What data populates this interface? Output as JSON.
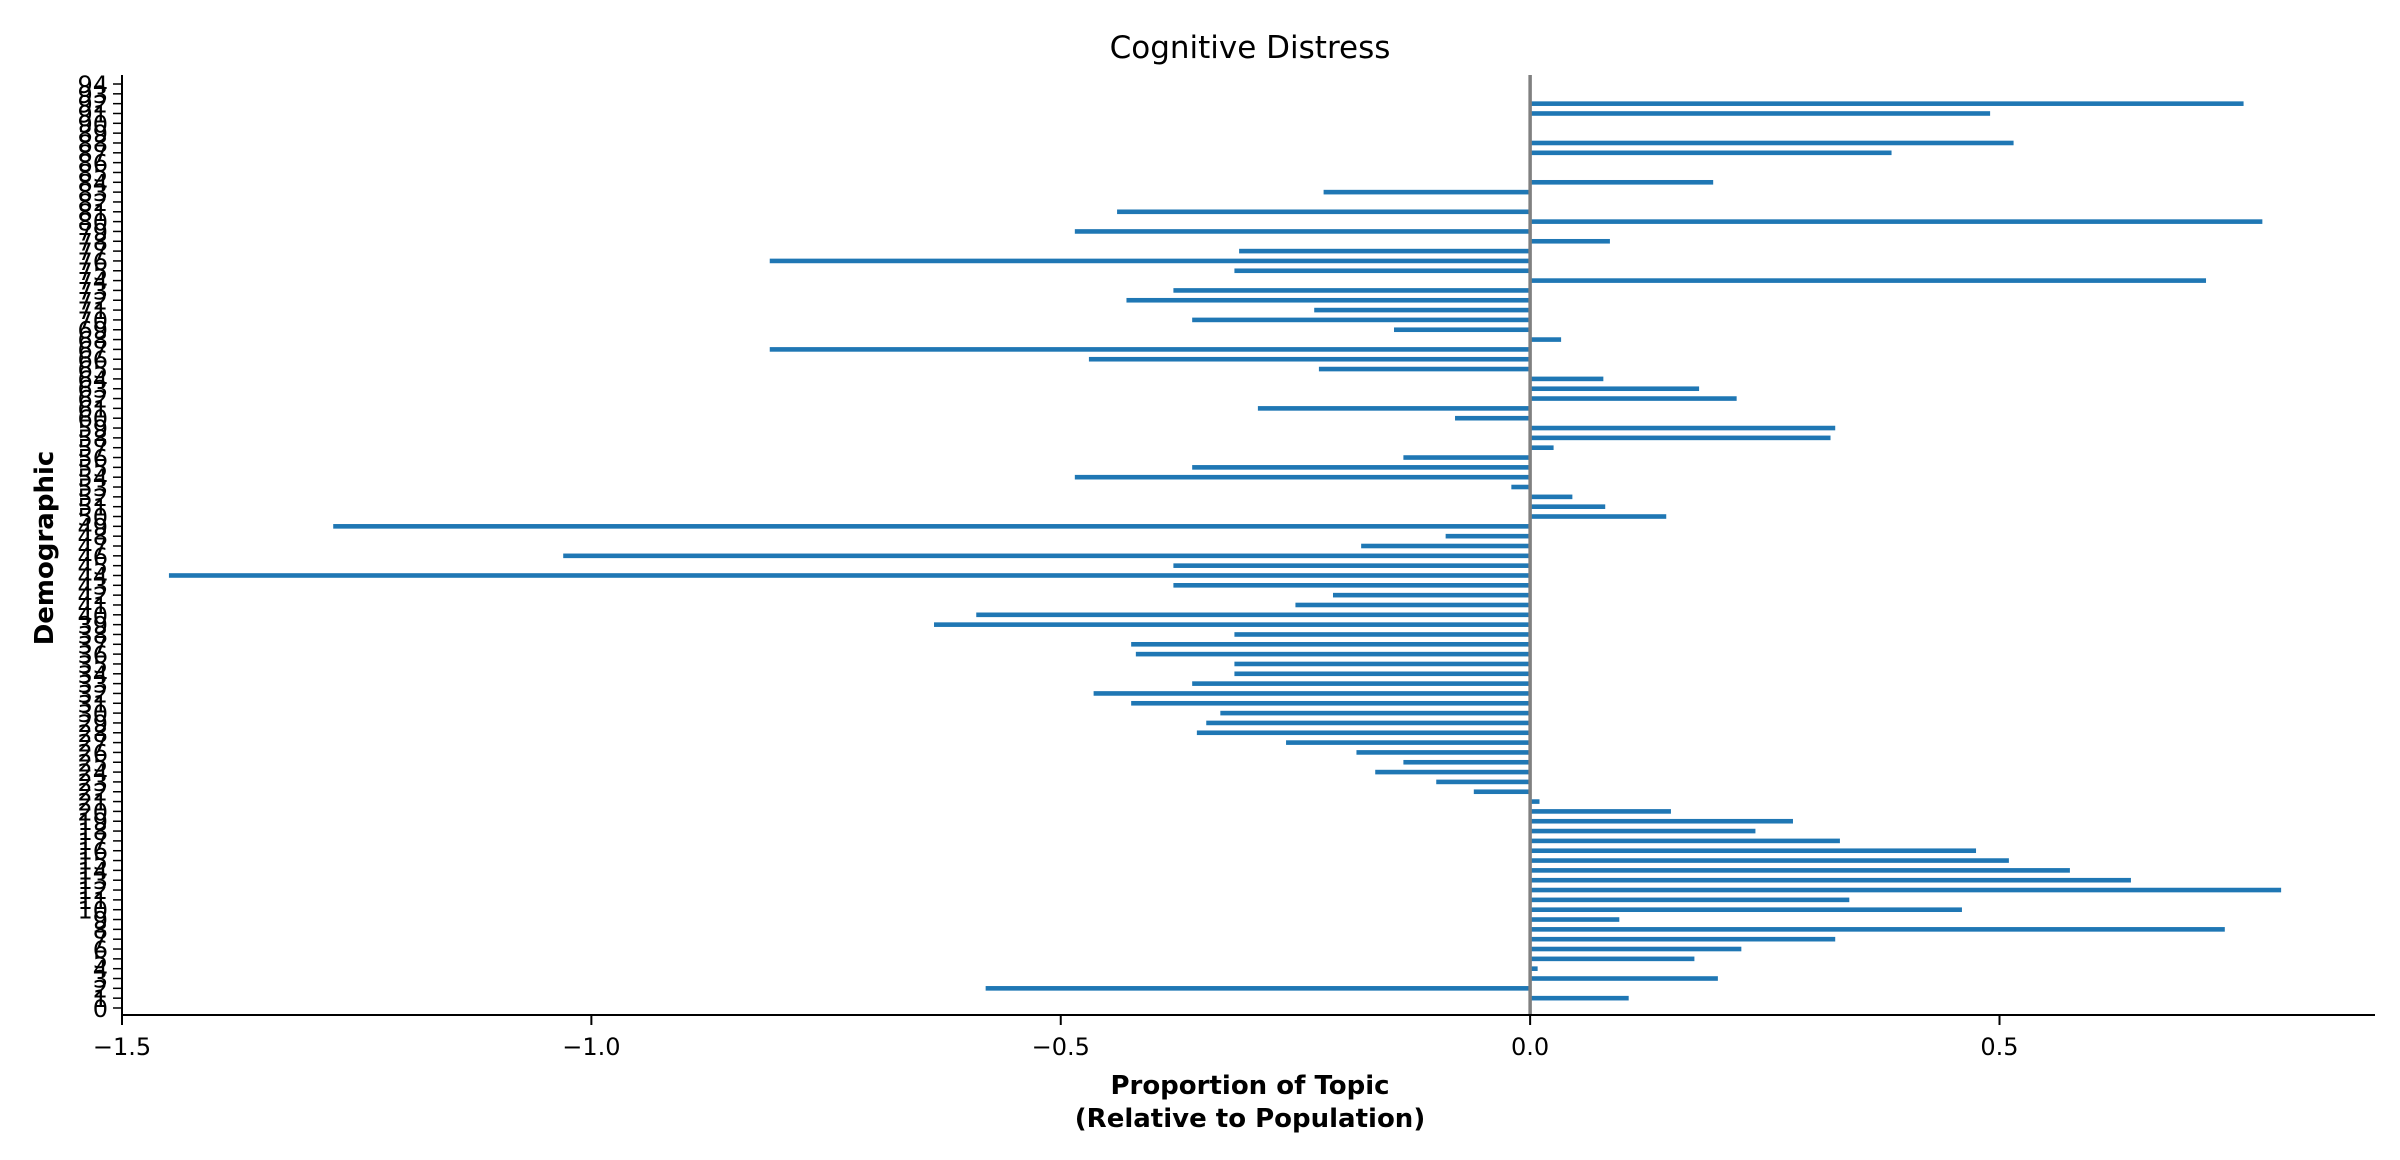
{
  "chart_data": {
    "type": "bar",
    "orientation": "horizontal",
    "title": "Cognitive Distress",
    "xlabel": [
      "Proportion of Topic",
      "(Relative to Population)"
    ],
    "ylabel": "Demographic",
    "xlim": [
      -1.5,
      0.9
    ],
    "ylim": [
      0,
      94
    ],
    "xticks": [
      -1.5,
      -1.0,
      -0.5,
      0.0,
      0.5
    ],
    "xtick_labels": [
      "−1.5",
      "−1.0",
      "−0.5",
      "0.0",
      "0.5"
    ],
    "grid": false,
    "bar_color": "#1f77b4",
    "zero_line_color": "#808080",
    "categories": [
      0,
      1,
      2,
      3,
      4,
      5,
      6,
      7,
      8,
      9,
      10,
      11,
      12,
      13,
      14,
      15,
      16,
      17,
      18,
      19,
      20,
      21,
      22,
      23,
      24,
      25,
      26,
      27,
      28,
      29,
      30,
      31,
      32,
      33,
      34,
      35,
      36,
      37,
      38,
      39,
      40,
      41,
      42,
      43,
      44,
      45,
      46,
      47,
      48,
      49,
      50,
      51,
      52,
      53,
      54,
      55,
      56,
      57,
      58,
      59,
      60,
      61,
      62,
      63,
      64,
      65,
      66,
      67,
      68,
      69,
      70,
      71,
      72,
      73,
      74,
      75,
      76,
      77,
      78,
      79,
      80,
      81,
      82,
      83,
      84,
      85,
      86,
      87,
      88,
      89,
      90,
      91,
      92,
      93,
      94
    ],
    "values": [
      0,
      0.105,
      -0.58,
      0.2,
      0.008,
      0.175,
      0.225,
      0.325,
      0.74,
      0.095,
      0.46,
      0.34,
      0.8,
      0.64,
      0.575,
      0.51,
      0.475,
      0.33,
      0.24,
      0.28,
      0.15,
      0.01,
      -0.06,
      -0.1,
      -0.165,
      -0.135,
      -0.185,
      -0.26,
      -0.355,
      -0.345,
      -0.33,
      -0.425,
      -0.465,
      -0.36,
      -0.315,
      -0.315,
      -0.42,
      -0.425,
      -0.315,
      -0.635,
      -0.59,
      -0.25,
      -0.21,
      -0.38,
      -1.45,
      -0.38,
      -1.03,
      -0.18,
      -0.09,
      -1.275,
      0.145,
      0.08,
      0.045,
      -0.02,
      -0.485,
      -0.36,
      -0.135,
      0.025,
      0.32,
      0.325,
      -0.08,
      -0.29,
      0.22,
      0.18,
      0.078,
      -0.225,
      -0.47,
      -0.81,
      0.033,
      -0.145,
      -0.36,
      -0.23,
      -0.43,
      -0.38,
      0.72,
      -0.315,
      -0.81,
      -0.31,
      0.085,
      -0.485,
      0.78,
      -0.44,
      0,
      -0.22,
      0.195,
      0,
      0,
      0.385,
      0.515,
      0,
      0,
      0.49,
      0.76,
      0,
      0
    ]
  }
}
